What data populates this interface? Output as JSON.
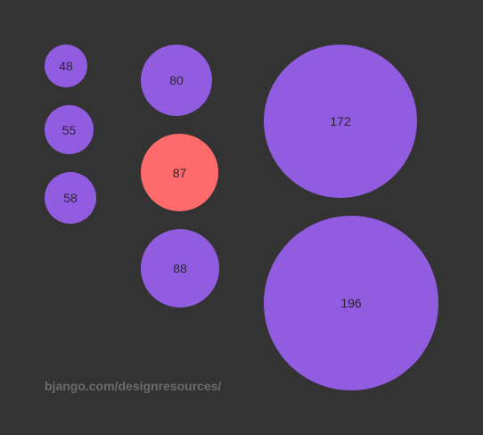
{
  "circles": [
    {
      "label": "48",
      "color": "#925ce0"
    },
    {
      "label": "55",
      "color": "#925ce0"
    },
    {
      "label": "58",
      "color": "#925ce0"
    },
    {
      "label": "80",
      "color": "#925ce0"
    },
    {
      "label": "87",
      "color": "#ff6a6a"
    },
    {
      "label": "88",
      "color": "#925ce0"
    },
    {
      "label": "172",
      "color": "#925ce0"
    },
    {
      "label": "196",
      "color": "#925ce0"
    }
  ],
  "colors": {
    "background": "#333333",
    "default_circle": "#925ce0",
    "highlight_circle": "#ff6a6a",
    "label_text": "#2a2433",
    "footer_text": "#6b6b6b"
  },
  "footer": {
    "link_text": "bjango.com/designresources/"
  }
}
